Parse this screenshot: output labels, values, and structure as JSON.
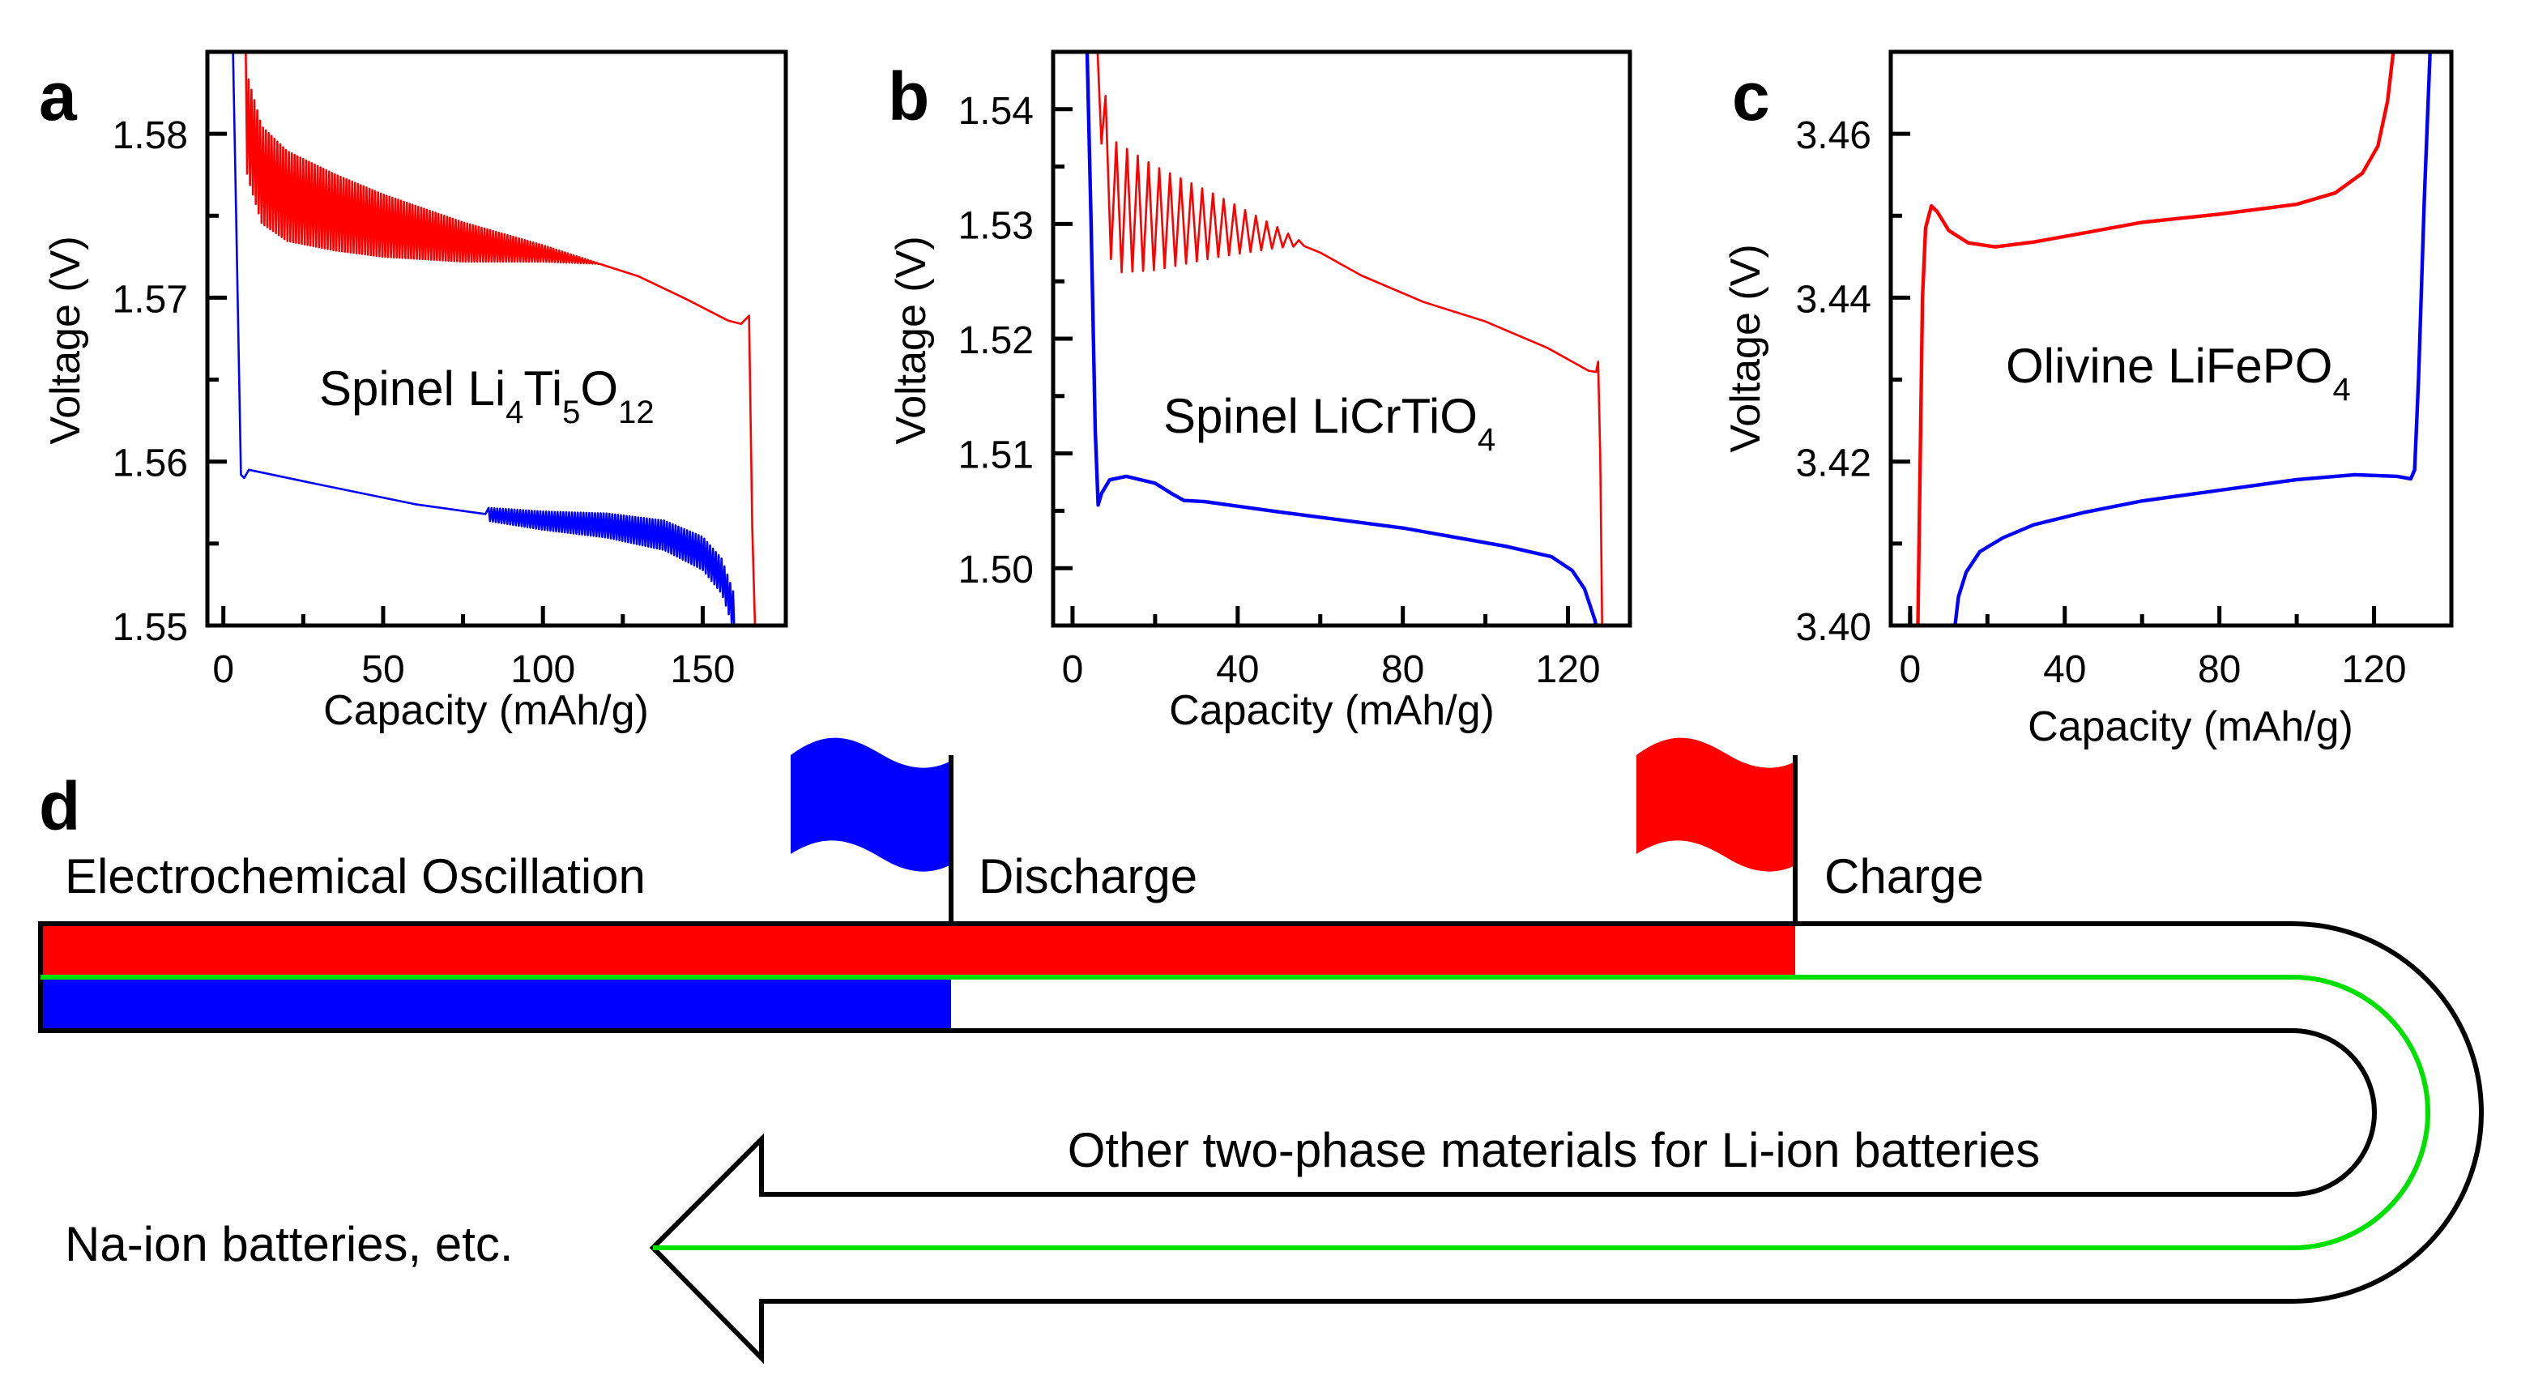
{
  "chart_data": [
    {
      "panel": "a",
      "type": "line",
      "annotation": [
        "Spinel Li",
        "4",
        "Ti",
        "5",
        "O",
        "12"
      ],
      "xlabel": "Capacity (mAh/g)",
      "ylabel": "Voltage (V)",
      "xlim": [
        -5,
        176
      ],
      "ylim": [
        1.55,
        1.585
      ],
      "xticks": [
        "0",
        "50",
        "100",
        "150"
      ],
      "xtick_values": [
        0,
        50,
        100,
        150
      ],
      "xminor": [
        25,
        75,
        125
      ],
      "yticks": [
        "1.55",
        "1.56",
        "1.57",
        "1.58"
      ],
      "ytick_values": [
        1.55,
        1.56,
        1.57,
        1.58
      ],
      "yminor": [
        1.555,
        1.565,
        1.575
      ],
      "series": [
        {
          "name": "Charge",
          "color": "#ff0000",
          "points": [
            [
              6,
              1.5852
            ],
            [
              7.5,
              1.5805
            ],
            [
              12,
              1.5775
            ],
            [
              20,
              1.5762
            ],
            [
              35,
              1.5752
            ],
            [
              50,
              1.5744
            ],
            [
              75,
              1.5734
            ],
            [
              100,
              1.5727
            ],
            [
              117,
              1.5721
            ],
            [
              130,
              1.5713
            ],
            [
              145,
              1.5699
            ],
            [
              158,
              1.5686
            ],
            [
              162,
              1.5684
            ],
            [
              164.5,
              1.5689
            ],
            [
              165.5,
              1.556
            ],
            [
              166.5,
              1.549
            ]
          ],
          "oscillation": {
            "from": 7,
            "to": 118,
            "period": 0.9,
            "amp_start": 0.0062,
            "amp_end": 0.0
          }
        },
        {
          "name": "Discharge",
          "color": "#0000ff",
          "points": [
            [
              3,
              1.5852
            ],
            [
              4,
              1.575
            ],
            [
              5.5,
              1.5592
            ],
            [
              6.5,
              1.559
            ],
            [
              8,
              1.5595
            ],
            [
              30,
              1.5586
            ],
            [
              60,
              1.5574
            ],
            [
              82,
              1.5568
            ],
            [
              100,
              1.5564
            ],
            [
              120,
              1.5561
            ],
            [
              138,
              1.5555
            ],
            [
              150,
              1.5544
            ],
            [
              156,
              1.553
            ],
            [
              159.5,
              1.551
            ],
            [
              161,
              1.549
            ]
          ],
          "oscillation": {
            "from": 83,
            "to": 160,
            "period": 0.9,
            "amp_start": 0.0008,
            "amp_end": 0.0022
          }
        }
      ]
    },
    {
      "panel": "b",
      "type": "line",
      "annotation": [
        "Spinel LiCrTiO",
        "4"
      ],
      "xlabel": "Capacity (mAh/g)",
      "ylabel": "Voltage (V)",
      "xlim": [
        -4.7,
        135
      ],
      "ylim": [
        1.495,
        1.545
      ],
      "xticks": [
        "0",
        "40",
        "80",
        "120"
      ],
      "xtick_values": [
        0,
        40,
        80,
        120
      ],
      "xminor": [
        20,
        60,
        100
      ],
      "yticks": [
        "1.50",
        "1.51",
        "1.52",
        "1.53",
        "1.54"
      ],
      "ytick_values": [
        1.5,
        1.51,
        1.52,
        1.53,
        1.54
      ],
      "yminor": [
        1.505,
        1.515,
        1.525,
        1.535
      ],
      "series": [
        {
          "name": "Charge",
          "color": "#ff0000",
          "points": [
            [
              6,
              1.5455
            ],
            [
              7,
              1.537
            ],
            [
              10,
              1.5315
            ],
            [
              20,
              1.5305
            ],
            [
              35,
              1.5298
            ],
            [
              50,
              1.5288
            ],
            [
              56,
              1.5282
            ],
            [
              60,
              1.5275
            ],
            [
              70,
              1.5255
            ],
            [
              85,
              1.5232
            ],
            [
              100,
              1.5215
            ],
            [
              115,
              1.5192
            ],
            [
              125,
              1.5172
            ],
            [
              126.8,
              1.5171
            ],
            [
              127.3,
              1.518
            ],
            [
              127.8,
              1.51
            ],
            [
              128.3,
              1.494
            ]
          ],
          "oscillation": {
            "from": 8,
            "to": 57,
            "period": 2.6,
            "amp_start": 0.012,
            "amp_end": 0.0
          }
        },
        {
          "name": "Discharge",
          "color": "#0000ff",
          "points": [
            [
              3.5,
              1.5455
            ],
            [
              4.5,
              1.53
            ],
            [
              5.5,
              1.512
            ],
            [
              6.2,
              1.5055
            ],
            [
              7,
              1.5065
            ],
            [
              9,
              1.5077
            ],
            [
              13,
              1.508
            ],
            [
              20,
              1.5074
            ],
            [
              24,
              1.5065
            ],
            [
              27,
              1.5059
            ],
            [
              32,
              1.5058
            ],
            [
              50,
              1.5049
            ],
            [
              80,
              1.5035
            ],
            [
              105,
              1.5019
            ],
            [
              116,
              1.501
            ],
            [
              121,
              1.4998
            ],
            [
              124,
              1.4982
            ],
            [
              126.5,
              1.4955
            ],
            [
              127.3,
              1.494
            ]
          ]
        }
      ]
    },
    {
      "panel": "c",
      "type": "line",
      "annotation": [
        "Olivine LiFePO",
        "4"
      ],
      "xlabel": "Capacity (mAh/g)",
      "ylabel": "Voltage (V)",
      "xlim": [
        -5,
        140
      ],
      "ylim": [
        3.4,
        3.47
      ],
      "xticks": [
        "0",
        "40",
        "80",
        "120"
      ],
      "xtick_values": [
        0,
        40,
        80,
        120
      ],
      "xminor": [
        0,
        20,
        60,
        100
      ],
      "yticks": [
        "3.40",
        "3.42",
        "3.44",
        "3.46"
      ],
      "ytick_values": [
        3.4,
        3.42,
        3.44,
        3.46
      ],
      "yminor": [
        3.41,
        3.43,
        3.45
      ],
      "series": [
        {
          "name": "Charge",
          "color": "#ff0000",
          "points": [
            [
              2,
              3.3995
            ],
            [
              2.6,
              3.42
            ],
            [
              3.2,
              3.44
            ],
            [
              4,
              3.4485
            ],
            [
              5.5,
              3.4512
            ],
            [
              7,
              3.4505
            ],
            [
              10,
              3.4482
            ],
            [
              15,
              3.4467
            ],
            [
              22,
              3.4462
            ],
            [
              32,
              3.4468
            ],
            [
              45,
              3.4479
            ],
            [
              60,
              3.4492
            ],
            [
              80,
              3.4502
            ],
            [
              100,
              3.4514
            ],
            [
              110,
              3.4528
            ],
            [
              117,
              3.4552
            ],
            [
              121,
              3.4585
            ],
            [
              123.5,
              3.464
            ],
            [
              125,
              3.4701
            ]
          ]
        },
        {
          "name": "Discharge",
          "color": "#0000ff",
          "points": [
            [
              11.5,
              3.3995
            ],
            [
              12.5,
              3.4035
            ],
            [
              14.5,
              3.4065
            ],
            [
              18,
              3.409
            ],
            [
              24,
              3.4107
            ],
            [
              32,
              3.4123
            ],
            [
              45,
              3.4138
            ],
            [
              60,
              3.4152
            ],
            [
              80,
              3.4165
            ],
            [
              100,
              3.4178
            ],
            [
              115,
              3.4184
            ],
            [
              126,
              3.4182
            ],
            [
              129.5,
              3.4179
            ],
            [
              130.5,
              3.419
            ],
            [
              131.5,
              3.43
            ],
            [
              133,
              3.452
            ],
            [
              134.5,
              3.4701
            ]
          ]
        }
      ]
    }
  ],
  "panels": {
    "a": "a",
    "b": "b",
    "c": "c",
    "d": "d"
  },
  "diagram": {
    "oscillation_label": "Electrochemical Oscillation",
    "discharge_label": "Discharge",
    "charge_label": "Charge",
    "other_label": "Other two-phase materials for Li-ion batteries",
    "na_label": "Na-ion batteries, etc.",
    "colors": {
      "discharge": "#0000ff",
      "charge": "#ff0000",
      "path": "#00e000"
    }
  }
}
